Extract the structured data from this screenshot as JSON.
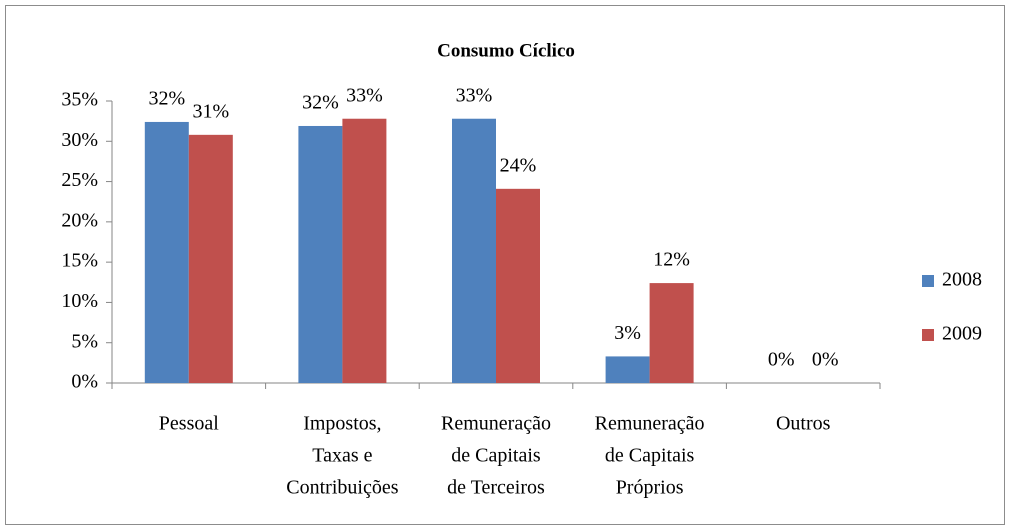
{
  "chart_data": {
    "type": "bar",
    "title": "Consumo Cíclico",
    "categories": [
      [
        "Pessoal"
      ],
      [
        "Impostos,",
        "Taxas e",
        "Contribuições"
      ],
      [
        "Remuneração",
        "de Capitais",
        "de Terceiros"
      ],
      [
        "Remuneração",
        "de Capitais",
        "Próprios"
      ],
      [
        "Outros"
      ]
    ],
    "series": [
      {
        "name": "2008",
        "color": "#4f81bd",
        "values": [
          32.4,
          31.9,
          32.8,
          3.3,
          0
        ],
        "value_labels": [
          "32%",
          "32%",
          "33%",
          "3%",
          "0%"
        ]
      },
      {
        "name": "2009",
        "color": "#c0504d",
        "values": [
          30.8,
          32.8,
          24.1,
          12.4,
          0
        ],
        "value_labels": [
          "31%",
          "33%",
          "24%",
          "12%",
          "0%"
        ]
      }
    ],
    "ylim": [
      0,
      35
    ],
    "yticks": [
      {
        "value": 0,
        "label": "0%"
      },
      {
        "value": 5,
        "label": "5%"
      },
      {
        "value": 10,
        "label": "10%"
      },
      {
        "value": 15,
        "label": "15%"
      },
      {
        "value": 20,
        "label": "20%"
      },
      {
        "value": 25,
        "label": "25%"
      },
      {
        "value": 30,
        "label": "30%"
      },
      {
        "value": 35,
        "label": "35%"
      }
    ],
    "grid": false,
    "legend": "right"
  }
}
